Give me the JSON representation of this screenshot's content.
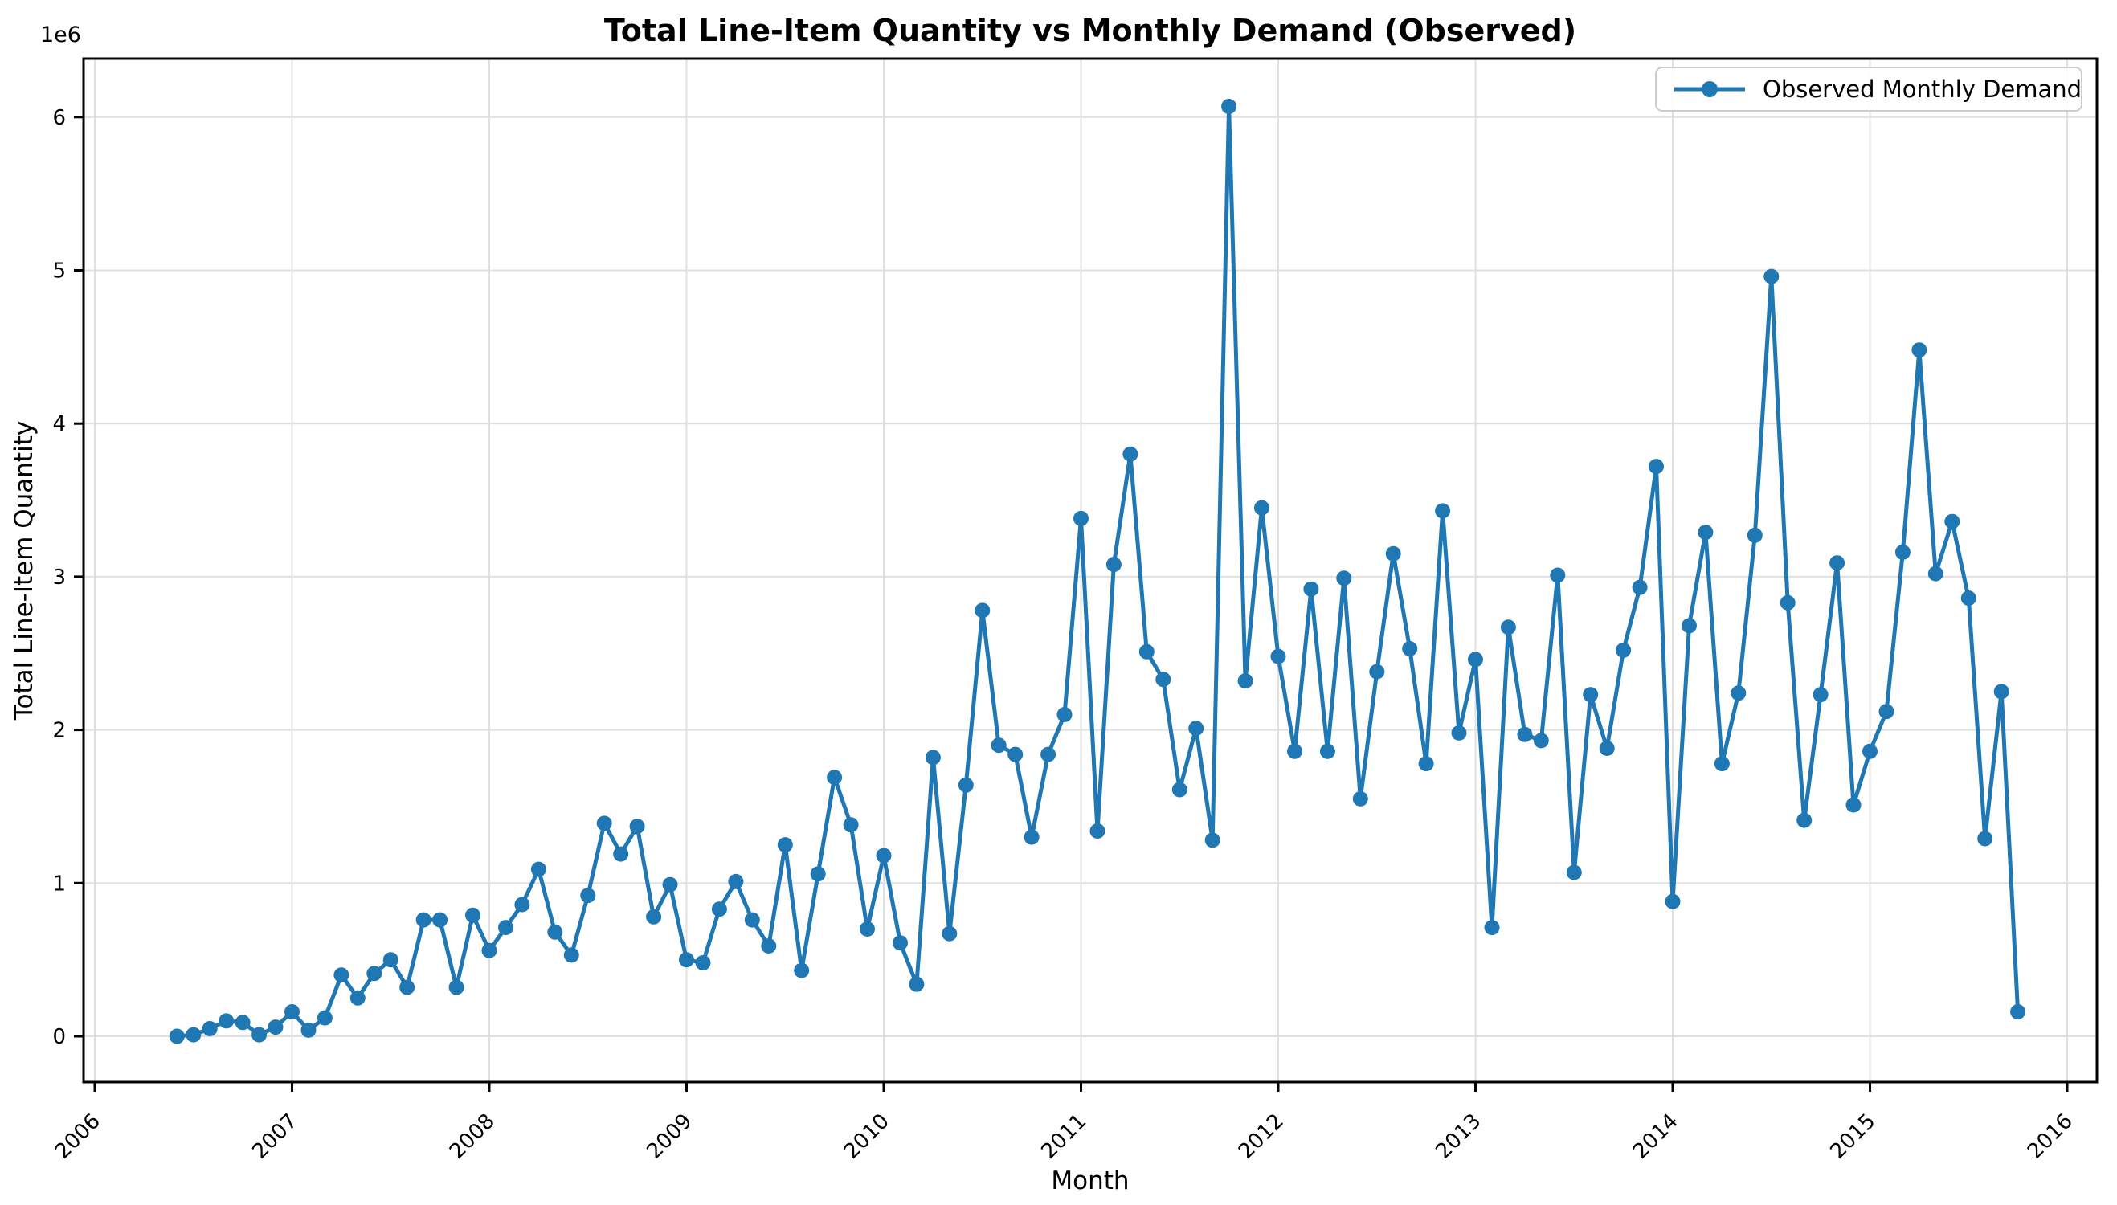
{
  "chart_data": {
    "type": "line",
    "title": "Total Line-Item Quantity vs Monthly Demand (Observed)",
    "xlabel": "Month",
    "ylabel": "Total Line-Item Quantity",
    "y_offset_text": "1e6",
    "grid": true,
    "legend": {
      "label": "Observed Monthly Demand",
      "position": "upper right"
    },
    "x_tick_labels": [
      "2006",
      "2007",
      "2008",
      "2009",
      "2010",
      "2011",
      "2012",
      "2013",
      "2014",
      "2015",
      "2016"
    ],
    "y_tick_labels": [
      "0",
      "1",
      "2",
      "3",
      "4",
      "5",
      "6"
    ],
    "y_units": "millions",
    "ylim_millions": [
      -0.3,
      6.37
    ],
    "xlim_years": [
      2005.94,
      2016.1
    ],
    "series": [
      {
        "name": "Observed Monthly Demand",
        "x": [
          "2006-06",
          "2006-07",
          "2006-08",
          "2006-09",
          "2006-10",
          "2006-11",
          "2006-12",
          "2007-01",
          "2007-02",
          "2007-03",
          "2007-04",
          "2007-05",
          "2007-06",
          "2007-07",
          "2007-08",
          "2007-09",
          "2007-10",
          "2007-11",
          "2007-12",
          "2008-01",
          "2008-02",
          "2008-03",
          "2008-04",
          "2008-05",
          "2008-06",
          "2008-07",
          "2008-08",
          "2008-09",
          "2008-10",
          "2008-11",
          "2008-12",
          "2009-01",
          "2009-02",
          "2009-03",
          "2009-04",
          "2009-05",
          "2009-06",
          "2009-07",
          "2009-08",
          "2009-09",
          "2009-10",
          "2009-11",
          "2009-12",
          "2010-01",
          "2010-02",
          "2010-03",
          "2010-04",
          "2010-05",
          "2010-06",
          "2010-07",
          "2010-08",
          "2010-09",
          "2010-10",
          "2010-11",
          "2010-12",
          "2011-01",
          "2011-02",
          "2011-03",
          "2011-04",
          "2011-05",
          "2011-06",
          "2011-07",
          "2011-08",
          "2011-09",
          "2011-10",
          "2011-11",
          "2011-12",
          "2012-01",
          "2012-02",
          "2012-03",
          "2012-04",
          "2012-05",
          "2012-06",
          "2012-07",
          "2012-08",
          "2012-09",
          "2012-10",
          "2012-11",
          "2012-12",
          "2013-01",
          "2013-02",
          "2013-03",
          "2013-04",
          "2013-05",
          "2013-06",
          "2013-07",
          "2013-08",
          "2013-09",
          "2013-10",
          "2013-11",
          "2013-12",
          "2014-01",
          "2014-02",
          "2014-03",
          "2014-04",
          "2014-05",
          "2014-06",
          "2014-07",
          "2014-08",
          "2014-09",
          "2014-10",
          "2014-11",
          "2014-12",
          "2015-01",
          "2015-02",
          "2015-03",
          "2015-04",
          "2015-05",
          "2015-06",
          "2015-07",
          "2015-08",
          "2015-09",
          "2015-10"
        ],
        "values_millions": [
          0.0,
          0.01,
          0.05,
          0.1,
          0.09,
          0.01,
          0.06,
          0.16,
          0.04,
          0.12,
          0.4,
          0.25,
          0.41,
          0.5,
          0.32,
          0.76,
          0.76,
          0.32,
          0.79,
          0.56,
          0.71,
          0.86,
          1.09,
          0.68,
          0.53,
          0.92,
          1.39,
          1.19,
          1.37,
          0.78,
          0.99,
          0.5,
          0.48,
          0.83,
          1.01,
          0.76,
          0.59,
          1.25,
          0.43,
          1.06,
          1.69,
          1.38,
          0.7,
          1.18,
          0.61,
          0.34,
          1.82,
          0.67,
          1.64,
          2.78,
          1.9,
          1.84,
          1.3,
          1.84,
          2.1,
          3.38,
          1.34,
          3.08,
          3.8,
          2.51,
          2.33,
          1.61,
          2.01,
          1.28,
          6.07,
          2.32,
          3.45,
          2.48,
          1.86,
          2.92,
          1.86,
          2.99,
          1.55,
          2.38,
          3.15,
          2.53,
          1.78,
          3.43,
          1.98,
          2.46,
          0.71,
          2.67,
          1.97,
          1.93,
          3.01,
          1.07,
          2.23,
          1.88,
          2.52,
          2.93,
          3.72,
          0.88,
          2.68,
          3.29,
          1.78,
          2.24,
          3.27,
          4.96,
          2.83,
          1.41,
          2.23,
          3.09,
          1.51,
          1.86,
          2.12,
          3.16,
          4.48,
          3.02,
          3.36,
          2.86,
          1.29,
          2.25,
          0.16
        ]
      }
    ]
  },
  "colors": {
    "series": "#1f77b4",
    "grid": "#e0e0e0",
    "spine": "#000000",
    "tick_label": "#000000",
    "legend_border": "#cccccc",
    "background": "#ffffff"
  }
}
